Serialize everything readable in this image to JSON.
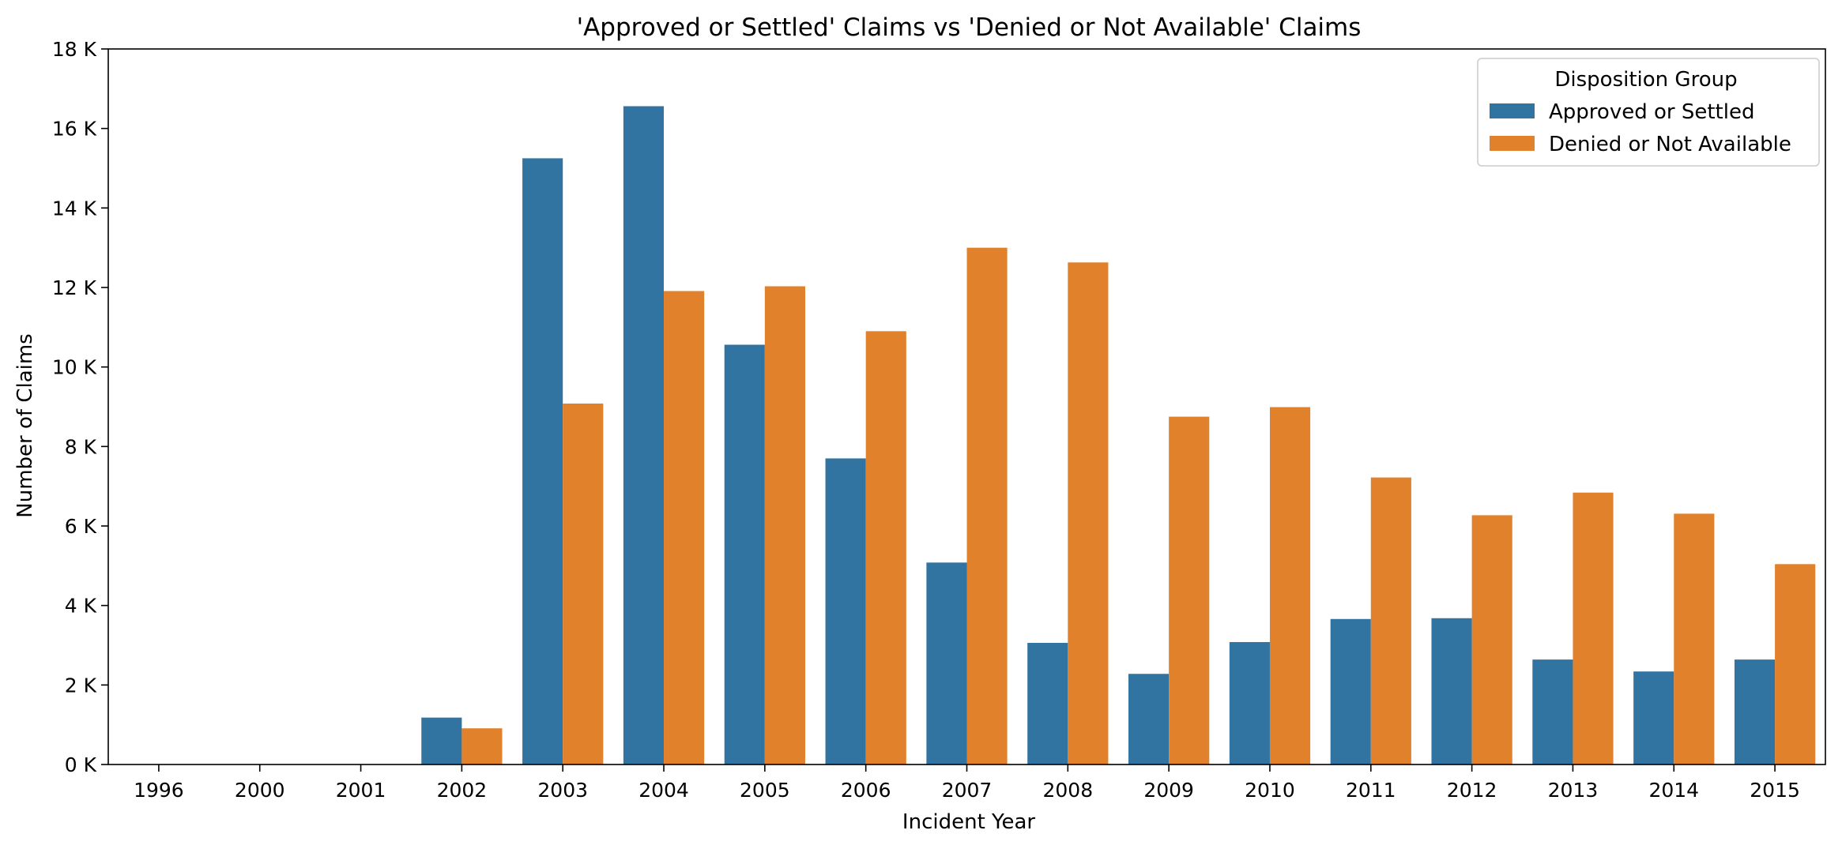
{
  "chart_data": {
    "type": "bar",
    "title": "'Approved or Settled' Claims vs 'Denied or Not Available' Claims",
    "xlabel": "Incident Year",
    "ylabel": "Number of Claims",
    "categories": [
      "1996",
      "2000",
      "2001",
      "2002",
      "2003",
      "2004",
      "2005",
      "2006",
      "2007",
      "2008",
      "2009",
      "2010",
      "2011",
      "2012",
      "2013",
      "2014",
      "2015"
    ],
    "series": [
      {
        "name": "Approved or Settled",
        "color": "#3274a1",
        "values": [
          0,
          0,
          0,
          1180,
          15250,
          16560,
          10560,
          7700,
          5080,
          3060,
          2280,
          3080,
          3660,
          3680,
          2640,
          2340,
          2640
        ]
      },
      {
        "name": "Denied or Not Available",
        "color": "#e1812c",
        "values": [
          0,
          0,
          0,
          910,
          9080,
          11910,
          12030,
          10900,
          13000,
          12630,
          8750,
          8990,
          7220,
          6270,
          6840,
          6310,
          5040
        ]
      }
    ],
    "ylim": [
      0,
      18000
    ],
    "yticks": [
      {
        "value": 0,
        "label": "0 K"
      },
      {
        "value": 2000,
        "label": "2 K"
      },
      {
        "value": 4000,
        "label": "4 K"
      },
      {
        "value": 6000,
        "label": "6 K"
      },
      {
        "value": 8000,
        "label": "8 K"
      },
      {
        "value": 10000,
        "label": "10 K"
      },
      {
        "value": 12000,
        "label": "12 K"
      },
      {
        "value": 14000,
        "label": "14 K"
      },
      {
        "value": 16000,
        "label": "16 K"
      },
      {
        "value": 18000,
        "label": "18 K"
      }
    ],
    "legend": {
      "title": "Disposition Group",
      "position": "top-right"
    },
    "grid": false
  }
}
